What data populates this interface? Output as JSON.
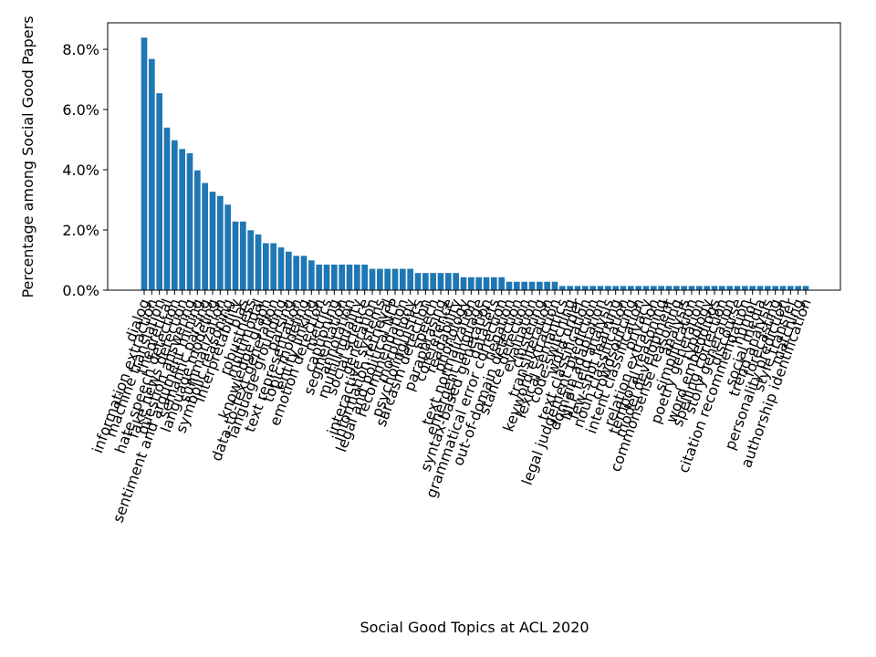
{
  "chart_data": {
    "type": "bar",
    "xlabel": "Social Good Topics at ACL 2020",
    "ylabel": "Percentage among Social Good Papers",
    "color": "#1f77b4",
    "categories": [
      "dialog",
      "information extraction",
      "machine translation",
      "theoretical",
      "hate speech detection",
      "fake news detection",
      "question answering",
      "sentiment and argument mining",
      "semantic parsing",
      "language modeling",
      "summarization",
      "symbolic reasoning",
      "interpretability",
      "bias",
      "robustness",
      "multimodal",
      "knowledge graph",
      "data-to-text generation",
      "language grounding",
      "parsing",
      "text representation",
      "topic modeling",
      "entity linking",
      "emotion detection",
      "metrics",
      "captioning",
      "segmentation",
      "annotation",
      "multilinguality",
      "social science",
      "generation",
      "interactive systems",
      "information retrieval",
      "legal and political NLP",
      "recommendation",
      "morphology",
      "psycholinguistics",
      "sarcasm detection",
      "speech",
      "paraphrasing",
      "coreference",
      "readability",
      "phonology",
      "text normalization",
      "emergent language",
      "syntax-based generation",
      "datasets",
      "grammatical error correction",
      "negation",
      "out-of-domain detection",
      "stance detection",
      "evaluation",
      "clustering",
      "transliteration",
      "keyword extraction",
      "lexical semantics",
      "code-switching",
      "word order",
      "text classification",
      "legal judgement prediction",
      "domain adaptation",
      "NLP field analysis",
      "few-shot learning",
      "noun classification",
      "crowdsourcing",
      "intent classification",
      "privacy",
      "relation extraction",
      "temporal reasoning",
      "model development",
      "commonsense reasoning",
      "analysis",
      "simplification",
      "poetry generation",
      "typology",
      "word embeddings",
      "spelling correction",
      "story generation",
      "discourse",
      "citation recommendation",
      "humor",
      "social media",
      "trend analysis",
      "forecasting",
      "personality prediction",
      "style transfer",
      "matching",
      "authorship identification"
    ],
    "values": [
      8.39,
      7.68,
      6.54,
      5.4,
      4.98,
      4.69,
      4.55,
      3.98,
      3.56,
      3.27,
      3.13,
      2.84,
      2.28,
      2.28,
      1.99,
      1.85,
      1.56,
      1.56,
      1.42,
      1.28,
      1.14,
      1.14,
      0.99,
      0.85,
      0.85,
      0.85,
      0.85,
      0.85,
      0.85,
      0.85,
      0.71,
      0.71,
      0.71,
      0.71,
      0.71,
      0.71,
      0.57,
      0.57,
      0.57,
      0.57,
      0.57,
      0.57,
      0.43,
      0.43,
      0.43,
      0.43,
      0.43,
      0.43,
      0.28,
      0.28,
      0.28,
      0.28,
      0.28,
      0.28,
      0.28,
      0.14,
      0.14,
      0.14,
      0.14,
      0.14,
      0.14,
      0.14,
      0.14,
      0.14,
      0.14,
      0.14,
      0.14,
      0.14,
      0.14,
      0.14,
      0.14,
      0.14,
      0.14,
      0.14,
      0.14,
      0.14,
      0.14,
      0.14,
      0.14,
      0.14,
      0.14,
      0.14,
      0.14,
      0.14,
      0.14,
      0.14,
      0.14,
      0.14
    ],
    "ylim": [
      0,
      8.88
    ],
    "yticks": [
      {
        "value": 0,
        "label": "0.0%"
      },
      {
        "value": 2,
        "label": "2.0%"
      },
      {
        "value": 4,
        "label": "4.0%"
      },
      {
        "value": 6,
        "label": "6.0%"
      },
      {
        "value": 8,
        "label": "8.0%"
      }
    ]
  }
}
